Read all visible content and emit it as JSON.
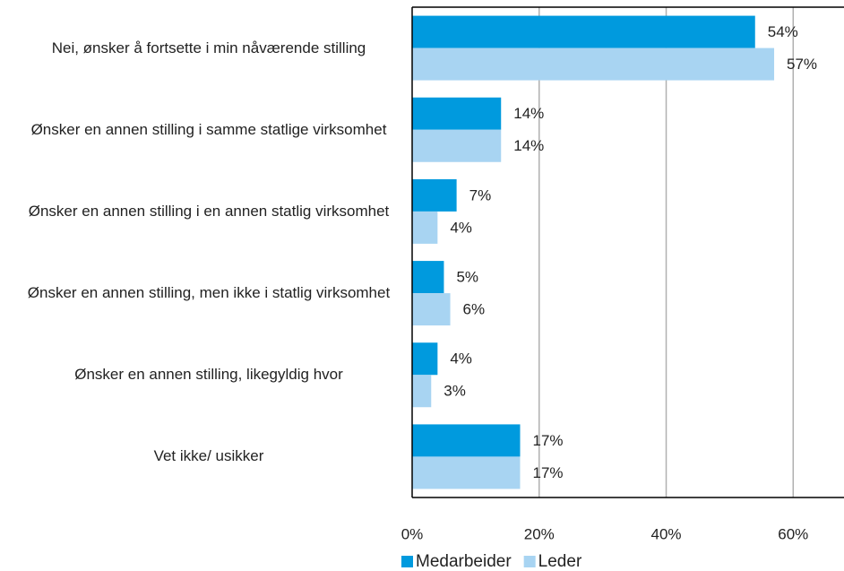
{
  "chart_data": {
    "type": "bar",
    "orientation": "horizontal",
    "categories": [
      "Nei, ønsker å fortsette i min nåværende stilling",
      "Ønsker en annen stilling i samme statlige virksomhet",
      "Ønsker en annen stilling i en annen statlig virksomhet",
      "Ønsker en annen stilling, men ikke i statlig virksomhet",
      "Ønsker en annen stilling, likegyldig hvor",
      "Vet ikke/ usikker"
    ],
    "series": [
      {
        "name": "Medarbeider",
        "color": "#009ade",
        "values": [
          54,
          14,
          7,
          5,
          4,
          17
        ],
        "value_labels": [
          "54%",
          "14%",
          "7%",
          "5%",
          "4%",
          "17%"
        ]
      },
      {
        "name": "Leder",
        "color": "#a8d4f2",
        "values": [
          57,
          14,
          4,
          6,
          3,
          17
        ],
        "value_labels": [
          "57%",
          "14%",
          "4%",
          "6%",
          "3%",
          "17%"
        ]
      }
    ],
    "xlim": [
      0,
      68
    ],
    "xticks": [
      {
        "value": 0,
        "label": "0%"
      },
      {
        "value": 20,
        "label": "20%"
      },
      {
        "value": 40,
        "label": "40%"
      },
      {
        "value": 60,
        "label": "60%"
      }
    ],
    "grid": true,
    "legend": "bottom"
  }
}
